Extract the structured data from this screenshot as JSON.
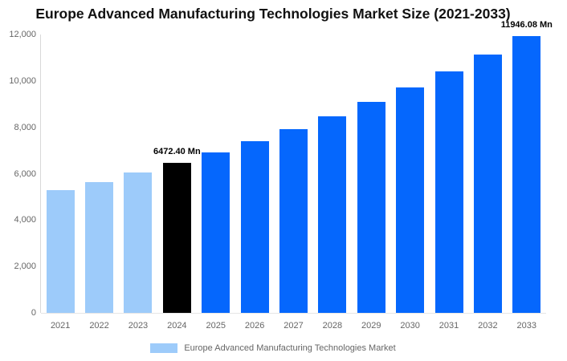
{
  "title": "Europe Advanced Manufacturing Technologies Market Size (2021-2033)",
  "legend": {
    "label": "Europe Advanced Manufacturing Technologies Market",
    "swatch_color": "#9DCBFA"
  },
  "chart_data": {
    "type": "bar",
    "title": "Europe Advanced Manufacturing Technologies Market Size (2021-2033)",
    "xlabel": "",
    "ylabel": "",
    "categories": [
      "2021",
      "2022",
      "2023",
      "2024",
      "2025",
      "2026",
      "2027",
      "2028",
      "2029",
      "2030",
      "2031",
      "2032",
      "2033"
    ],
    "values": [
      5280,
      5650,
      6050,
      6472.4,
      6920,
      7400,
      7920,
      8470,
      9100,
      9720,
      10410,
      11140,
      11946.08
    ],
    "unit": "Mn",
    "roles": [
      "historical",
      "historical",
      "historical",
      "base_year",
      "forecast",
      "forecast",
      "forecast",
      "forecast",
      "forecast",
      "forecast",
      "forecast",
      "forecast",
      "forecast"
    ],
    "bar_colors": {
      "historical": "#9DCBFA",
      "base_year": "#000000",
      "forecast": "#0567FD"
    },
    "ylim": [
      0,
      12000
    ],
    "yticks": [
      0,
      2000,
      4000,
      6000,
      8000,
      10000,
      12000
    ],
    "ytick_labels": [
      "0",
      "2,000",
      "4,000",
      "6,000",
      "8,000",
      "10,000",
      "12,000"
    ],
    "annotations": [
      {
        "category": "2024",
        "text": "6472.40 Mn"
      },
      {
        "category": "2033",
        "text": "11946.08 Mn"
      }
    ],
    "grid": false,
    "legend_position": "bottom"
  }
}
